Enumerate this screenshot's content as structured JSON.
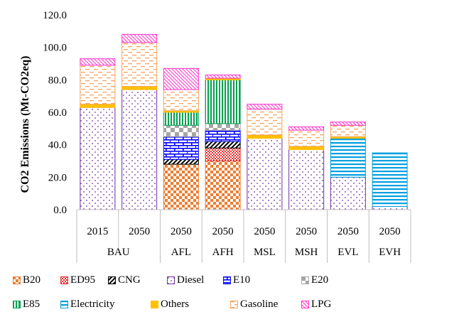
{
  "chart_data": {
    "type": "bar",
    "stacked": true,
    "ylabel": "CO2 Emissions (Mt-CO2eq)",
    "ylim": [
      0,
      120
    ],
    "yticks": [
      "0.0",
      "20.0",
      "40.0",
      "60.0",
      "80.0",
      "100.0",
      "120.0"
    ],
    "grid": false,
    "legend_position": "bottom",
    "categories": [
      "2015",
      "2050",
      "2050",
      "2050",
      "2050",
      "2050",
      "2050",
      "2050"
    ],
    "groups": [
      {
        "label": "BAU",
        "span": 2
      },
      {
        "label": "AFL",
        "span": 1
      },
      {
        "label": "AFH",
        "span": 1
      },
      {
        "label": "MSL",
        "span": 1
      },
      {
        "label": "MSH",
        "span": 1
      },
      {
        "label": "EVL",
        "span": 1
      },
      {
        "label": "EVH",
        "span": 1
      }
    ],
    "series": [
      {
        "name": "B20",
        "color": "#ED7D31",
        "pattern": "checker",
        "values": [
          0,
          0,
          28,
          30,
          0,
          0,
          0,
          0
        ]
      },
      {
        "name": "ED95",
        "color": "#E8312F",
        "pattern": "smallchecker",
        "values": [
          0,
          0,
          0,
          8,
          0,
          0,
          0,
          0
        ]
      },
      {
        "name": "CNG",
        "color": "#000000",
        "pattern": "diag",
        "values": [
          0,
          0,
          3,
          4,
          0,
          0,
          0,
          0
        ]
      },
      {
        "name": "Diesel",
        "color": "#7030A0",
        "pattern": "dots",
        "values": [
          63,
          74,
          0,
          0,
          44,
          37,
          20,
          2
        ]
      },
      {
        "name": "E10",
        "color": "#0000FF",
        "pattern": "brick",
        "values": [
          0,
          0,
          14,
          7,
          0,
          0,
          0,
          0
        ]
      },
      {
        "name": "E20",
        "color": "#A6A6A6",
        "pattern": "bigchecker",
        "values": [
          0,
          0,
          7,
          4,
          0,
          0,
          0,
          0
        ]
      },
      {
        "name": "E85",
        "color": "#00A050",
        "pattern": "vlines",
        "values": [
          0,
          0,
          8,
          27,
          0,
          0,
          0,
          0
        ]
      },
      {
        "name": "Electricity",
        "color": "#00A0E0",
        "pattern": "hlines",
        "values": [
          0,
          0,
          0,
          0,
          0,
          0,
          24,
          33
        ]
      },
      {
        "name": "Others",
        "color": "#FFC000",
        "pattern": "solid",
        "values": [
          2,
          2,
          1,
          1,
          2,
          2,
          1,
          0
        ]
      },
      {
        "name": "Gasoline",
        "color": "#F4A460",
        "pattern": "dashes",
        "values": [
          24,
          27,
          13,
          0,
          16,
          10,
          7,
          0
        ]
      },
      {
        "name": "LPG",
        "color": "#FF33CC",
        "pattern": "diagdense",
        "values": [
          4,
          5,
          13,
          2,
          3,
          2,
          2,
          0
        ]
      }
    ]
  }
}
